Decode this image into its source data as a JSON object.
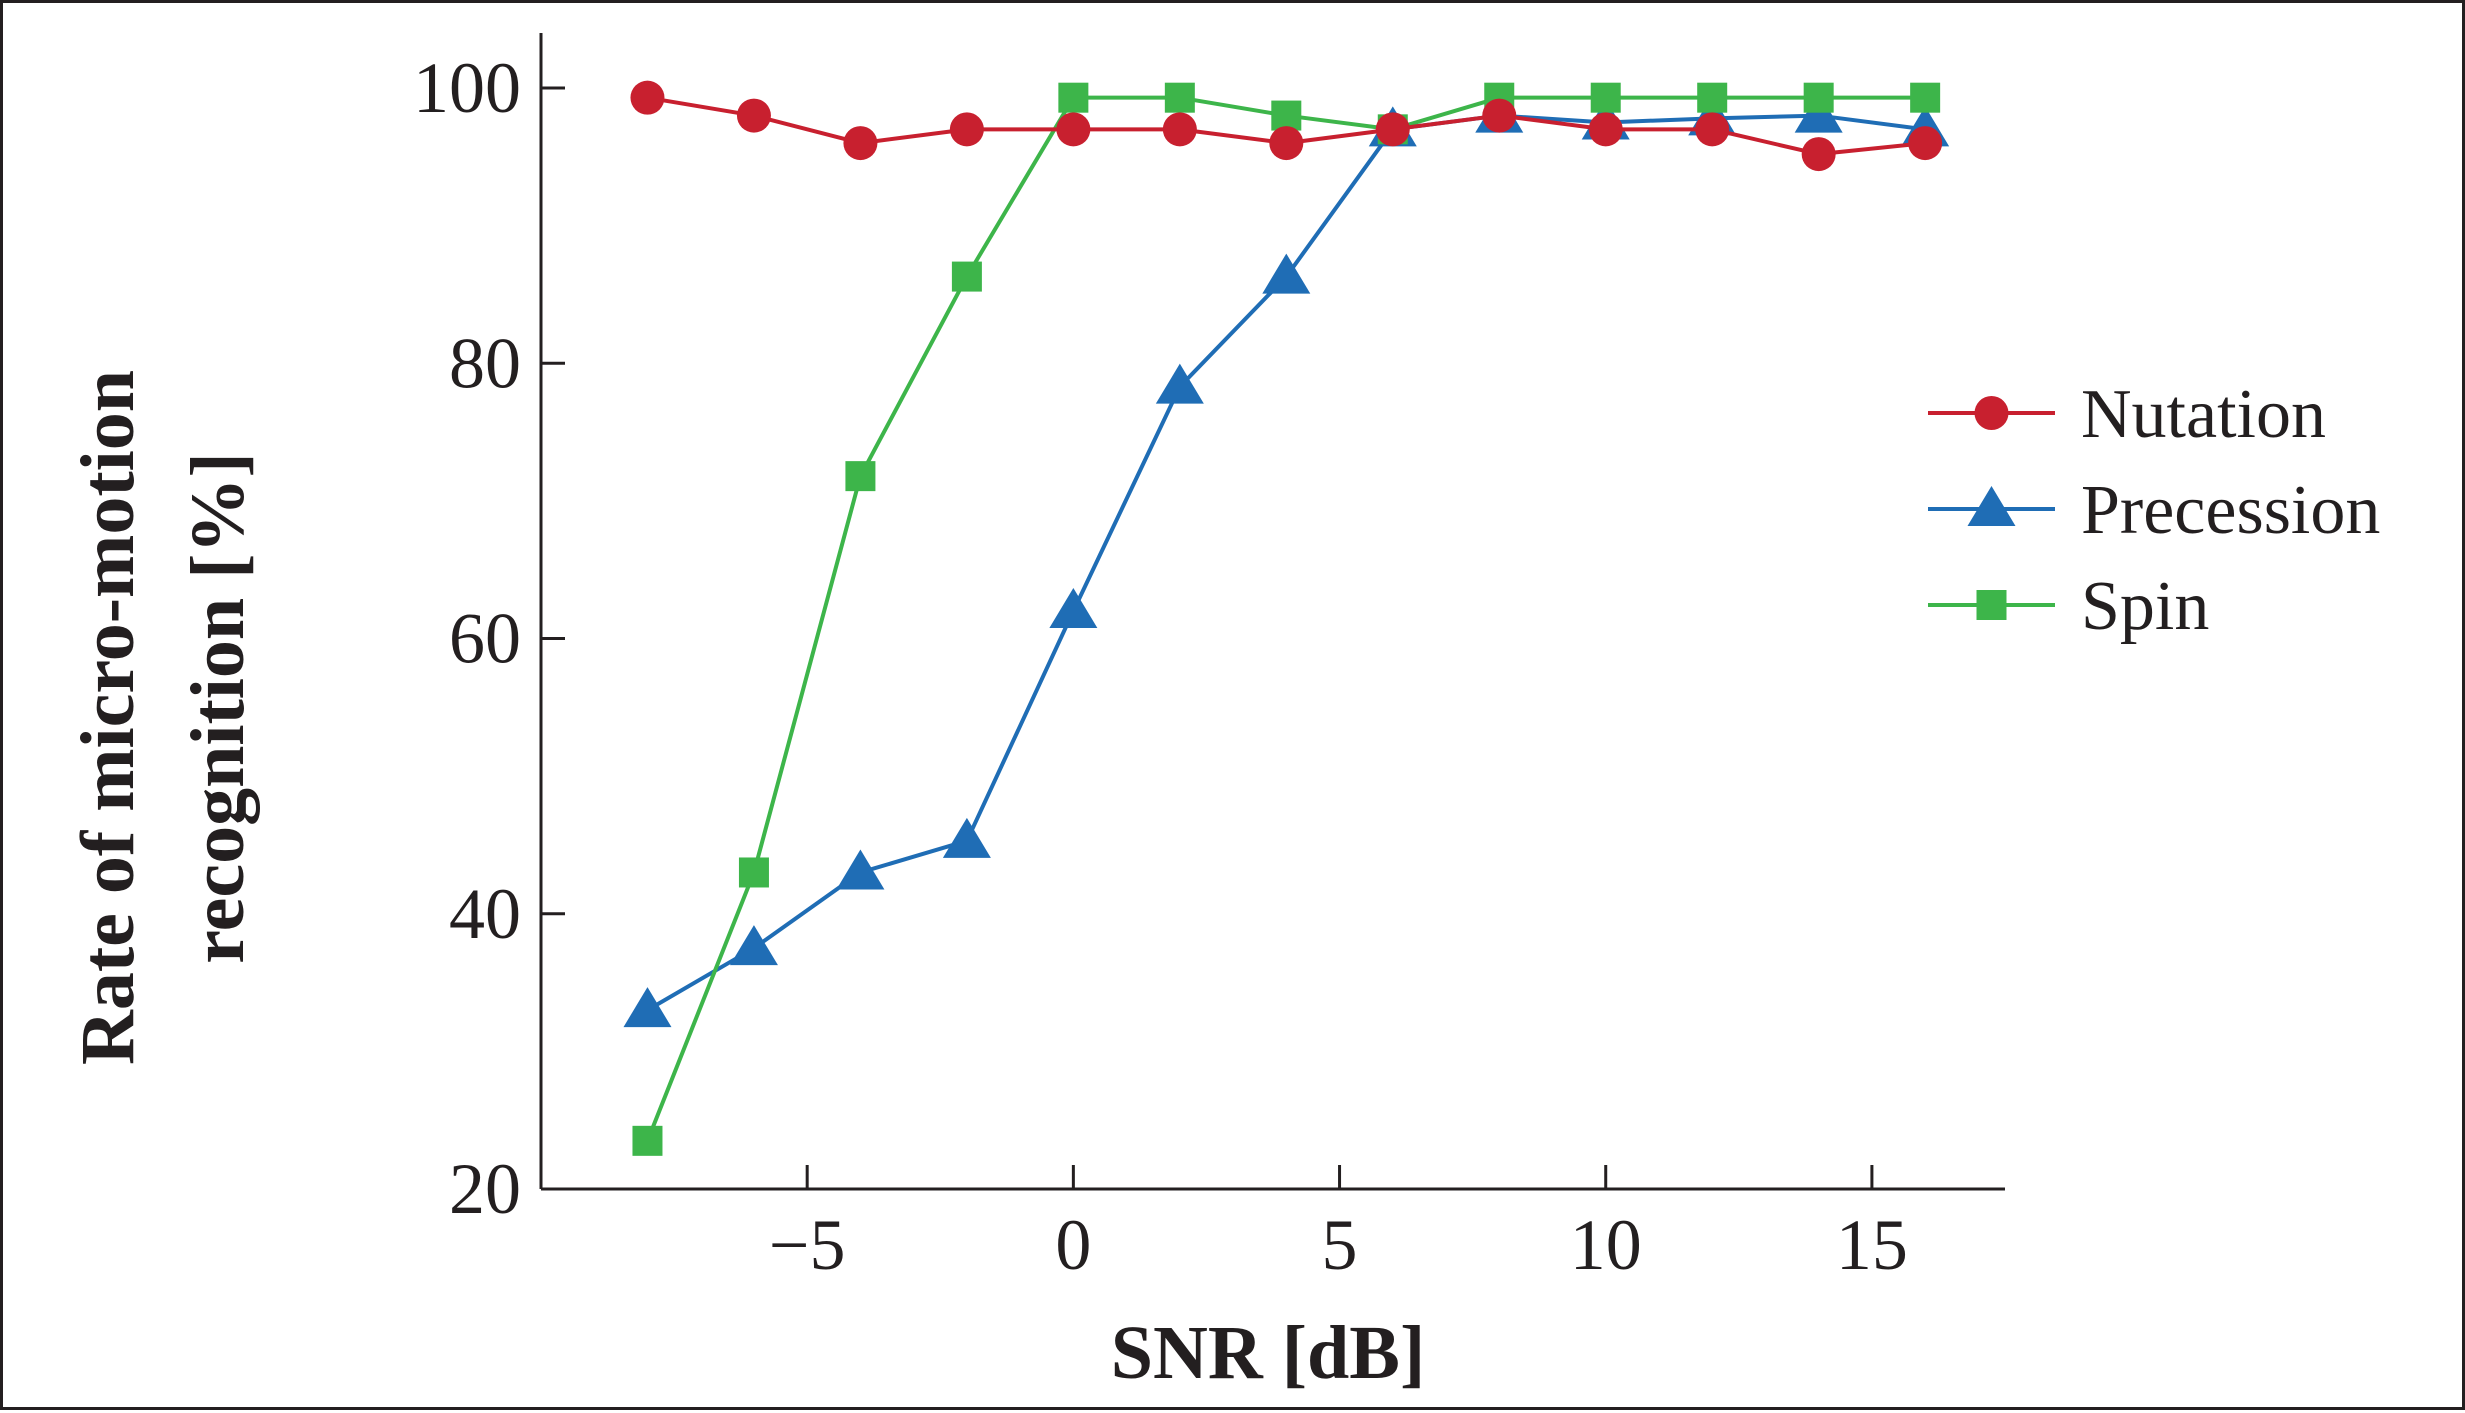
{
  "chart_data": {
    "type": "line",
    "title": "",
    "xlabel": "SNR [dB]",
    "ylabel_lines": [
      "Rate of micro-motion",
      "recognition [%]"
    ],
    "xlim": [
      -10,
      17.5
    ],
    "ylim": [
      20,
      104
    ],
    "xticks": [
      -5,
      0,
      5,
      10,
      15
    ],
    "xtick_labels": [
      "−5",
      "0",
      "5",
      "10",
      "15"
    ],
    "yticks": [
      20,
      40,
      60,
      80,
      100
    ],
    "ytick_labels": [
      "20",
      "40",
      "60",
      "80",
      "100"
    ],
    "grid": false,
    "legend_position": "right",
    "x": [
      -8,
      -6,
      -4,
      -2,
      0,
      2,
      4,
      6,
      8,
      10,
      12,
      14,
      16
    ],
    "series": [
      {
        "name": "Nutation",
        "marker": "circle",
        "color": "#c8202f",
        "values": [
          99.3,
          98.0,
          96.0,
          97.0,
          97.0,
          97.0,
          96.0,
          97.0,
          98.0,
          97.0,
          97.0,
          95.2,
          96.0
        ]
      },
      {
        "name": "Precession",
        "marker": "triangle",
        "color": "#1f6db5",
        "values": [
          33.0,
          37.5,
          43.0,
          45.3,
          62.0,
          78.3,
          86.3,
          97.0,
          98.0,
          97.5,
          97.8,
          98.0,
          97.0
        ]
      },
      {
        "name": "Spin",
        "marker": "square",
        "color": "#3db54a",
        "values": [
          23.5,
          43.0,
          71.8,
          86.3,
          99.3,
          99.3,
          98.0,
          97.0,
          99.3,
          99.3,
          99.3,
          99.3,
          99.3
        ]
      }
    ]
  }
}
